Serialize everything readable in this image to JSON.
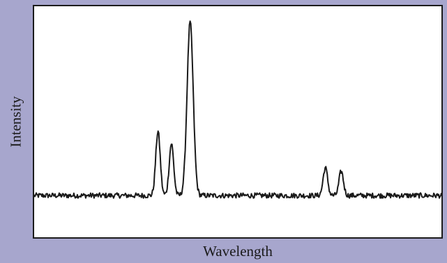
{
  "chart_data": {
    "type": "line",
    "title": "",
    "xlabel": "Wavelength",
    "ylabel": "Intensity",
    "x_ticks": false,
    "y_ticks": false,
    "grid": false,
    "legend": "none",
    "xlim": [
      0,
      100
    ],
    "ylim": [
      0,
      100
    ],
    "series": [
      {
        "color": "#1a1a1a",
        "peaks": [
          {
            "x": 30.4,
            "height": 37
          },
          {
            "x": 33.7,
            "height": 30
          },
          {
            "x": 38.3,
            "height": 100
          },
          {
            "x": 71.5,
            "height": 16
          },
          {
            "x": 75.4,
            "height": 14
          }
        ],
        "baseline": 4,
        "noise": 1.5
      }
    ]
  },
  "colors": {
    "background": "#a7a6cd",
    "plot_background": "#ffffff",
    "frame": "#1b1b1b",
    "line": "#1a1a1a"
  }
}
